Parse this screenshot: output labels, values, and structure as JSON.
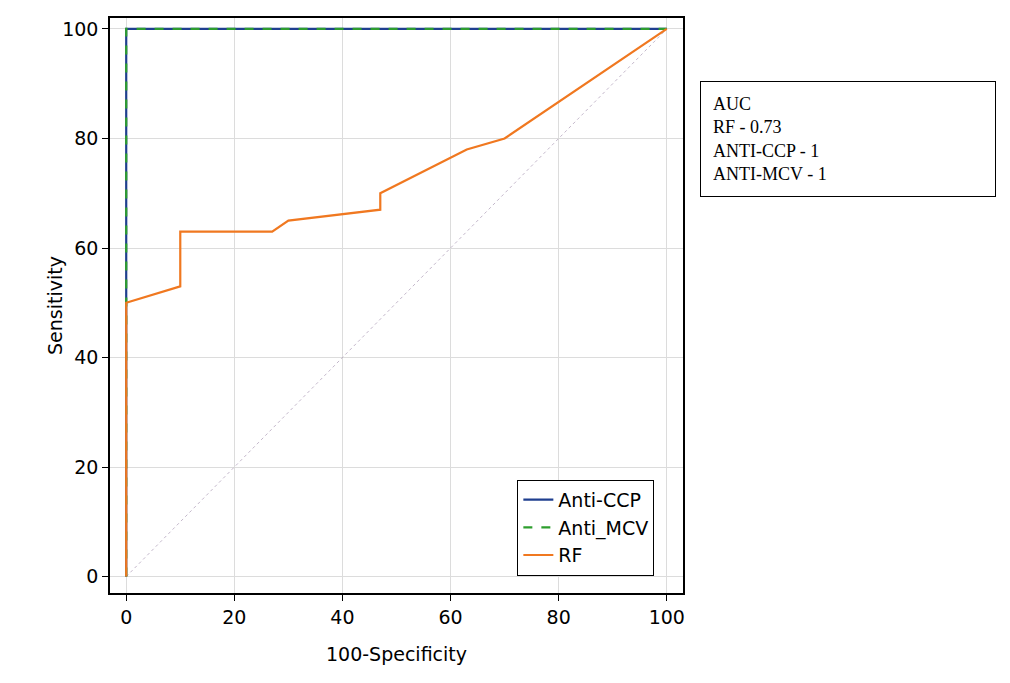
{
  "chart_data": {
    "type": "line",
    "x_label": "100-Specificity",
    "y_label": "Sensitivity",
    "xlim": [
      -3,
      103
    ],
    "ylim": [
      -3,
      102
    ],
    "xticks": [
      0,
      20,
      40,
      60,
      80,
      100
    ],
    "yticks": [
      0,
      20,
      40,
      60,
      80,
      100
    ],
    "grid": true,
    "legend": "bottom right",
    "series": [
      {
        "name": "Anti-CCP",
        "color": "#1f3f8f",
        "line_style": "solid",
        "x": [
          0,
          0,
          100
        ],
        "values": [
          0,
          100,
          100
        ]
      },
      {
        "name": "Anti_MCV",
        "color": "#2e9e2e",
        "line_style": "dash",
        "x": [
          0,
          0,
          100
        ],
        "values": [
          0,
          100,
          100
        ]
      },
      {
        "name": "RF",
        "color": "#f07820",
        "line_style": "solid",
        "x": [
          0,
          0,
          10,
          10,
          27,
          30,
          47,
          47,
          63,
          70,
          100
        ],
        "values": [
          0,
          50,
          53,
          63,
          63,
          65,
          67,
          70,
          78,
          80,
          100
        ]
      },
      {
        "color": "#b4a4bc",
        "line_style": "dot",
        "x": [
          0,
          100
        ],
        "values": [
          0,
          100
        ]
      }
    ],
    "annotations": [
      "AUC",
      "RF - 0.73",
      "ANTI-CCP - 1",
      "ANTI-MCV - 1"
    ]
  }
}
